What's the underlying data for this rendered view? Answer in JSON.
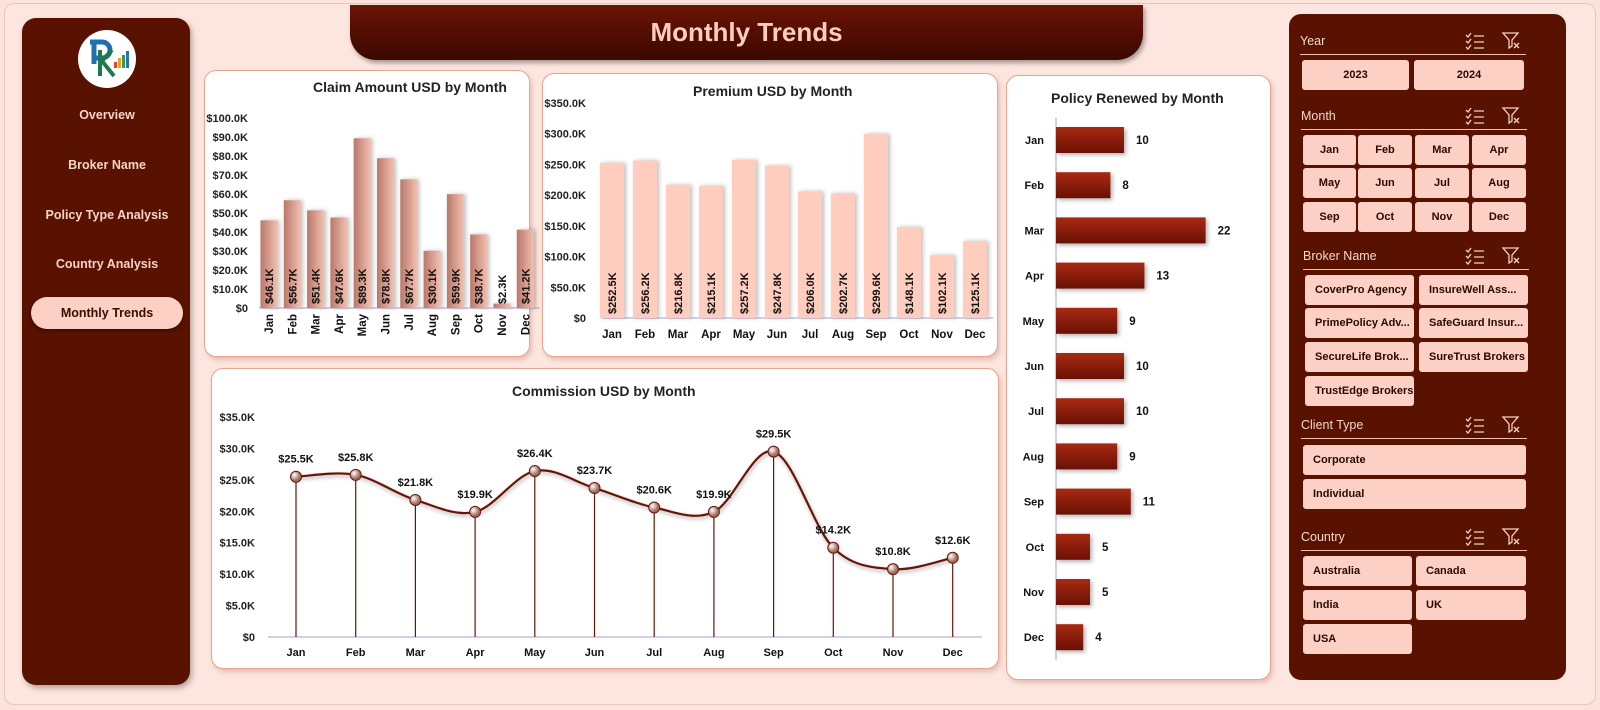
{
  "colors": {
    "sidebar": "#5a1200",
    "accent": "#fcd0c4",
    "bar_claim": "#c98f80",
    "bar_premium": "#ffcdbd",
    "bar_policy": "#8a1a08",
    "line": "#6a1405"
  },
  "sidebar": {
    "logo": "RK",
    "items": [
      {
        "label": "Overview"
      },
      {
        "label": "Broker Name"
      },
      {
        "label": "Policy Type Analysis"
      },
      {
        "label": "Country  Analysis"
      },
      {
        "label": "Monthly Trends",
        "active": true
      }
    ]
  },
  "header": {
    "title": "Monthly Trends"
  },
  "chart_data": [
    {
      "type": "bar",
      "title": "Claim Amount USD by Month",
      "categories": [
        "Jan",
        "Feb",
        "Mar",
        "Apr",
        "May",
        "Jun",
        "Jul",
        "Aug",
        "Sep",
        "Oct",
        "Nov",
        "Dec"
      ],
      "values": [
        46.1,
        56.7,
        51.4,
        47.6,
        89.3,
        78.8,
        67.7,
        30.1,
        59.9,
        38.7,
        2.3,
        41.2
      ],
      "labels": [
        "$46.1K",
        "$56.7K",
        "$51.4K",
        "$47.6K",
        "$89.3K",
        "$78.8K",
        "$67.7K",
        "$30.1K",
        "$59.9K",
        "$38.7K",
        "$2.3K",
        "$41.2K"
      ],
      "unit": "USD thousands",
      "ylim": [
        0,
        100
      ],
      "yticks": [
        "$0",
        "$10.0K",
        "$20.0K",
        "$30.0K",
        "$40.0K",
        "$50.0K",
        "$60.0K",
        "$70.0K",
        "$80.0K",
        "$90.0K",
        "$100.0K"
      ]
    },
    {
      "type": "bar",
      "title": "Premium USD by Month",
      "categories": [
        "Jan",
        "Feb",
        "Mar",
        "Apr",
        "May",
        "Jun",
        "Jul",
        "Aug",
        "Sep",
        "Oct",
        "Nov",
        "Dec"
      ],
      "values": [
        252.5,
        256.2,
        216.8,
        215.1,
        257.2,
        247.8,
        206.0,
        202.7,
        299.6,
        148.1,
        102.1,
        125.1
      ],
      "labels": [
        "$252.5K",
        "$256.2K",
        "$216.8K",
        "$215.1K",
        "$257.2K",
        "$247.8K",
        "$206.0K",
        "$202.7K",
        "$299.6K",
        "$148.1K",
        "$102.1K",
        "$125.1K"
      ],
      "unit": "USD thousands",
      "ylim": [
        0,
        350
      ],
      "yticks": [
        "$0",
        "$50.0K",
        "$100.0K",
        "$150.0K",
        "$200.0K",
        "$250.0K",
        "$300.0K",
        "$350.0K"
      ]
    },
    {
      "type": "bar",
      "orientation": "horizontal",
      "title": "Policy Renewed by Month",
      "categories": [
        "Jan",
        "Feb",
        "Mar",
        "Apr",
        "May",
        "Jun",
        "Jul",
        "Aug",
        "Sep",
        "Oct",
        "Nov",
        "Dec"
      ],
      "values": [
        10,
        8,
        22,
        13,
        9,
        10,
        10,
        9,
        11,
        5,
        5,
        4
      ]
    },
    {
      "type": "line",
      "title": "Commission USD by Month",
      "categories": [
        "Jan",
        "Feb",
        "Mar",
        "Apr",
        "May",
        "Jun",
        "Jul",
        "Aug",
        "Sep",
        "Oct",
        "Nov",
        "Dec"
      ],
      "values": [
        25.5,
        25.8,
        21.8,
        19.9,
        26.4,
        23.7,
        20.6,
        19.9,
        29.5,
        14.2,
        10.8,
        12.6
      ],
      "labels": [
        "$25.5K",
        "$25.8K",
        "$21.8K",
        "$19.9K",
        "$26.4K",
        "$23.7K",
        "$20.6K",
        "$19.9K",
        "$29.5K",
        "$14.2K",
        "$10.8K",
        "$12.6K"
      ],
      "unit": "USD thousands",
      "ylim": [
        0,
        35
      ],
      "yticks": [
        "$0",
        "$5.0K",
        "$10.0K",
        "$15.0K",
        "$20.0K",
        "$25.0K",
        "$30.0K",
        "$35.0K"
      ]
    }
  ],
  "slicers": [
    {
      "title": "Year",
      "items": [
        "2023",
        "2024"
      ]
    },
    {
      "title": "Month",
      "items": [
        "Jan",
        "Feb",
        "Mar",
        "Apr",
        "May",
        "Jun",
        "Jul",
        "Aug",
        "Sep",
        "Oct",
        "Nov",
        "Dec"
      ]
    },
    {
      "title": "Broker Name",
      "items": [
        "CoverPro Agency",
        "InsureWell Ass...",
        "PrimePolicy Adv...",
        "SafeGuard Insur...",
        "SecureLife Brok...",
        "SureTrust Brokers",
        "TrustEdge Brokers"
      ]
    },
    {
      "title": "Client Type",
      "items": [
        "Corporate",
        "Individual"
      ]
    },
    {
      "title": "Country",
      "items": [
        "Australia",
        "Canada",
        "India",
        "UK",
        "USA"
      ]
    }
  ],
  "icons": {
    "multi_select": "multi-select-icon",
    "clear_filter": "clear-filter-icon"
  }
}
